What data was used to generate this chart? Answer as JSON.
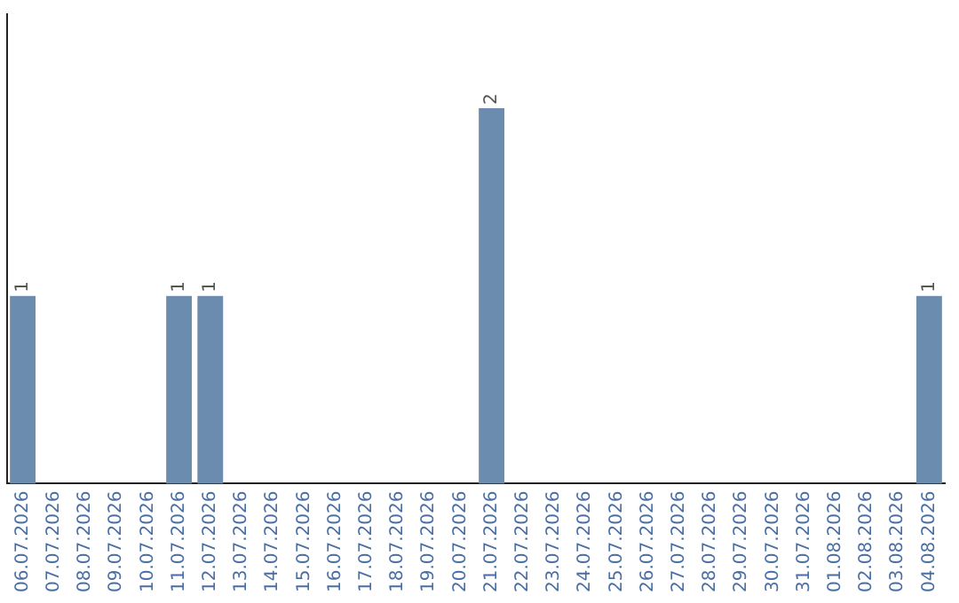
{
  "chart_data": {
    "type": "bar",
    "categories": [
      "06.07.2026",
      "07.07.2026",
      "08.07.2026",
      "09.07.2026",
      "10.07.2026",
      "11.07.2026",
      "12.07.2026",
      "13.07.2026",
      "14.07.2026",
      "15.07.2026",
      "16.07.2026",
      "17.07.2026",
      "18.07.2026",
      "19.07.2026",
      "20.07.2026",
      "21.07.2026",
      "22.07.2026",
      "23.07.2026",
      "24.07.2026",
      "25.07.2026",
      "26.07.2026",
      "27.07.2026",
      "28.07.2026",
      "29.07.2026",
      "30.07.2026",
      "31.07.2026",
      "01.08.2026",
      "02.08.2026",
      "03.08.2026",
      "04.08.2026"
    ],
    "values": [
      1,
      0,
      0,
      0,
      0,
      1,
      1,
      0,
      0,
      0,
      0,
      0,
      0,
      0,
      0,
      2,
      0,
      0,
      0,
      0,
      0,
      0,
      0,
      0,
      0,
      0,
      0,
      0,
      0,
      1
    ],
    "value_labels": [
      "1",
      null,
      null,
      null,
      null,
      "1",
      "1",
      null,
      null,
      null,
      null,
      null,
      null,
      null,
      null,
      "2",
      null,
      null,
      null,
      null,
      null,
      null,
      null,
      null,
      null,
      null,
      null,
      null,
      null,
      "1"
    ],
    "color": "#6b8cae",
    "tick_labels": "x",
    "grid": false,
    "legend": false
  }
}
